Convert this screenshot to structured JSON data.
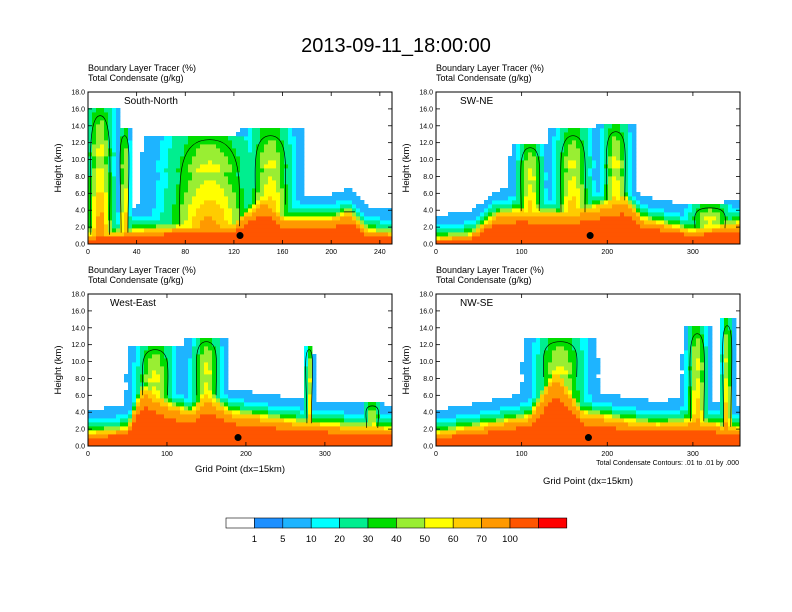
{
  "figure": {
    "title": "2013-09-11_18:00:00",
    "contour_note": "Total Condensate Contours: .01 to .01 by .000"
  },
  "colors": {
    "levels": [
      "#ffffff",
      "#1e90ff",
      "#1eb4ff",
      "#00ffff",
      "#00ee8f",
      "#00dd00",
      "#99ee33",
      "#ffff00",
      "#ffcc00",
      "#ff9900",
      "#ff5500",
      "#ff0000"
    ],
    "contour": "#000000"
  },
  "colorbar": {
    "labels": [
      "1",
      "5",
      "10",
      "20",
      "30",
      "40",
      "50",
      "60",
      "70",
      "100"
    ]
  },
  "chart_data": [
    {
      "type": "heatmap",
      "panel_name": "South-North",
      "header_line1": "Boundary Layer Tracer   (%)",
      "header_line2": "Total Condensate   (g/kg)",
      "ylabel": "Height (km)",
      "xlabel": "",
      "xlim": [
        0,
        250
      ],
      "ylim": [
        0,
        18
      ],
      "xticks": [
        0,
        40,
        80,
        120,
        160,
        200,
        240
      ],
      "yticks": [
        "0.0",
        "2.0",
        "4.0",
        "6.0",
        "8.0",
        "10.0",
        "12.0",
        "14.0",
        "16.0",
        "18.0"
      ],
      "boundary_layer_top_km": [
        [
          0,
          1.0
        ],
        [
          20,
          1.2
        ],
        [
          40,
          1.5
        ],
        [
          80,
          2.0
        ],
        [
          120,
          2.2
        ],
        [
          145,
          5.5
        ],
        [
          160,
          3.0
        ],
        [
          200,
          3.0
        ],
        [
          215,
          3.8
        ],
        [
          230,
          1.5
        ],
        [
          250,
          1.3
        ]
      ],
      "plumes": [
        {
          "x": 10,
          "top_km": 16.0,
          "width": 22
        },
        {
          "x": 30,
          "top_km": 13.5,
          "width": 8
        },
        {
          "x": 100,
          "top_km": 13.0,
          "width": 70
        },
        {
          "x": 150,
          "top_km": 13.5,
          "width": 35
        },
        {
          "x": 215,
          "top_km": 4.0,
          "width": 10
        }
      ],
      "terrain_marker": {
        "x": 125,
        "y_km": 1.0
      }
    },
    {
      "type": "heatmap",
      "panel_name": "SW-NE",
      "header_line1": "Boundary Layer Tracer   (%)",
      "header_line2": "Total Condensate   (g/kg)",
      "ylabel": "Height (km)",
      "xlabel": "",
      "xlim": [
        0,
        355
      ],
      "ylim": [
        0,
        18
      ],
      "xticks": [
        0,
        100,
        200,
        300
      ],
      "yticks": [
        "0.0",
        "2.0",
        "4.0",
        "6.0",
        "8.0",
        "10.0",
        "12.0",
        "14.0",
        "16.0",
        "18.0"
      ],
      "boundary_layer_top_km": [
        [
          0,
          0.6
        ],
        [
          40,
          1.0
        ],
        [
          70,
          3.5
        ],
        [
          100,
          4.0
        ],
        [
          150,
          3.5
        ],
        [
          190,
          4.5
        ],
        [
          220,
          5.5
        ],
        [
          240,
          3.0
        ],
        [
          300,
          1.5
        ],
        [
          355,
          2.5
        ]
      ],
      "plumes": [
        {
          "x": 110,
          "top_km": 12.0,
          "width": 30
        },
        {
          "x": 160,
          "top_km": 13.5,
          "width": 40
        },
        {
          "x": 210,
          "top_km": 14.0,
          "width": 30
        },
        {
          "x": 320,
          "top_km": 4.5,
          "width": 50
        }
      ],
      "terrain_marker": {
        "x": 180,
        "y_km": 1.0
      }
    },
    {
      "type": "heatmap",
      "panel_name": "West-East",
      "header_line1": "Boundary Layer Tracer   (%)",
      "header_line2": "Total Condensate   (g/kg)",
      "ylabel": "Height (km)",
      "xlabel": "Grid Point (dx=15km)",
      "xlim": [
        0,
        385
      ],
      "ylim": [
        0,
        18
      ],
      "xticks": [
        0,
        100,
        200,
        300
      ],
      "yticks": [
        "0.0",
        "2.0",
        "4.0",
        "6.0",
        "8.0",
        "10.0",
        "12.0",
        "14.0",
        "16.0",
        "18.0"
      ],
      "boundary_layer_top_km": [
        [
          0,
          1.5
        ],
        [
          50,
          2.0
        ],
        [
          70,
          7.0
        ],
        [
          100,
          5.0
        ],
        [
          130,
          4.0
        ],
        [
          150,
          6.0
        ],
        [
          180,
          4.0
        ],
        [
          250,
          3.0
        ],
        [
          300,
          2.5
        ],
        [
          385,
          2.0
        ]
      ],
      "plumes": [
        {
          "x": 85,
          "top_km": 12.0,
          "width": 45
        },
        {
          "x": 150,
          "top_km": 13.0,
          "width": 35
        },
        {
          "x": 280,
          "top_km": 12.0,
          "width": 8
        },
        {
          "x": 360,
          "top_km": 5.0,
          "width": 20
        }
      ],
      "terrain_marker": {
        "x": 190,
        "y_km": 1.0
      }
    },
    {
      "type": "heatmap",
      "panel_name": "NW-SE",
      "header_line1": "Boundary Layer Tracer   (%)",
      "header_line2": "Total Condensate   (g/kg)",
      "ylabel": "Height (km)",
      "xlabel": "Grid Point (dx=15km)",
      "xlim": [
        0,
        355
      ],
      "ylim": [
        0,
        18
      ],
      "xticks": [
        0,
        100,
        200,
        300
      ],
      "yticks": [
        "0.0",
        "2.0",
        "4.0",
        "6.0",
        "8.0",
        "10.0",
        "12.0",
        "14.0",
        "16.0",
        "18.0"
      ],
      "boundary_layer_top_km": [
        [
          0,
          1.5
        ],
        [
          60,
          2.5
        ],
        [
          110,
          3.5
        ],
        [
          140,
          9.0
        ],
        [
          170,
          4.0
        ],
        [
          220,
          3.0
        ],
        [
          260,
          2.5
        ],
        [
          300,
          3.0
        ],
        [
          355,
          2.0
        ]
      ],
      "plumes": [
        {
          "x": 145,
          "top_km": 13.0,
          "width": 55
        },
        {
          "x": 305,
          "top_km": 14.0,
          "width": 22
        },
        {
          "x": 340,
          "top_km": 15.0,
          "width": 12
        }
      ],
      "terrain_marker": {
        "x": 178,
        "y_km": 1.0
      }
    }
  ]
}
